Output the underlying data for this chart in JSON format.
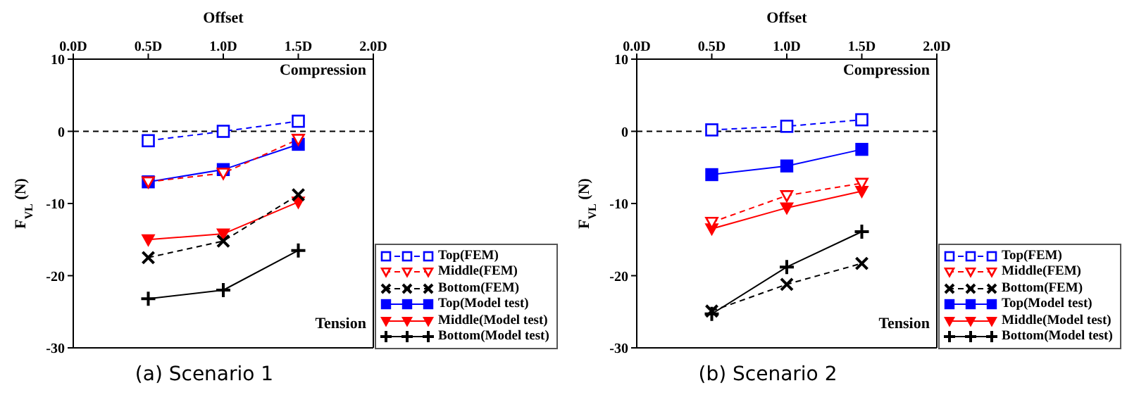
{
  "chart_data": [
    {
      "type": "line",
      "title": "(a) Scenario 1",
      "xlabel": "Offset",
      "ylabel": "F$_{VL}$ (N)",
      "x": [
        0.5,
        1.0,
        1.5
      ],
      "xlim": [
        0,
        2
      ],
      "xticks": [
        {
          "value": 0,
          "label": "0.0D"
        },
        {
          "value": 0.5,
          "label": "0.5D"
        },
        {
          "value": 1,
          "label": "1.0D"
        },
        {
          "value": 1.5,
          "label": "1.5D"
        },
        {
          "value": 2,
          "label": "2.0D"
        }
      ],
      "ylim": [
        -30,
        10
      ],
      "yticks": [
        -30,
        -20,
        -10,
        0,
        10
      ],
      "legend": "bottom right",
      "annotations": [
        "Compression",
        "Tension"
      ],
      "ref_lines": [
        {
          "axis": "y",
          "value": 0,
          "color": "#000000",
          "line_style": "dashed"
        }
      ],
      "series": [
        {
          "name": "Top(FEM)",
          "color": "#0000ff",
          "marker": "square",
          "line_style": "dashed",
          "values": [
            -1.3,
            0,
            1.4
          ]
        },
        {
          "name": "Middle(FEM)",
          "color": "#ff0000",
          "marker": "triangle",
          "line_style": "dashed",
          "values": [
            -7,
            -5.8,
            -1.1
          ]
        },
        {
          "name": "Bottom(FEM)",
          "color": "#000000",
          "marker": "cross",
          "line_style": "dashed",
          "values": [
            -17.5,
            -15.2,
            -8.8
          ]
        },
        {
          "name": "Top(Model test)",
          "color": "#0000ff",
          "marker": "square",
          "line_style": "solid",
          "values": [
            -7,
            -5.3,
            -1.8
          ]
        },
        {
          "name": "Middle(Model test)",
          "color": "#ff0000",
          "marker": "triangle",
          "line_style": "solid",
          "values": [
            -15,
            -14.2,
            -9.8
          ]
        },
        {
          "name": "Bottom(Model test)",
          "color": "#000000",
          "marker": "cross",
          "line_style": "solid",
          "values": [
            -23.2,
            -22,
            -16.5
          ]
        }
      ]
    },
    {
      "type": "line",
      "title": "(b) Scenario 2",
      "xlabel": "Offset",
      "ylabel": "F$_{VL}$ (N)",
      "x": [
        0.5,
        1.0,
        1.5
      ],
      "xlim": [
        0,
        2
      ],
      "xticks": [
        {
          "value": 0,
          "label": "0.0D"
        },
        {
          "value": 0.5,
          "label": "0.5D"
        },
        {
          "value": 1,
          "label": "1.0D"
        },
        {
          "value": 1.5,
          "label": "1.5D"
        },
        {
          "value": 2,
          "label": "2.0D"
        }
      ],
      "ylim": [
        -30,
        10
      ],
      "yticks": [
        -30,
        -20,
        -10,
        0,
        10
      ],
      "legend": "bottom right",
      "annotations": [
        "Compression",
        "Tension"
      ],
      "ref_lines": [
        {
          "axis": "y",
          "value": 0,
          "color": "#000000",
          "line_style": "dashed"
        }
      ],
      "series": [
        {
          "name": "Top(FEM)",
          "color": "#0000ff",
          "marker": "square",
          "line_style": "dashed",
          "values": [
            0.2,
            0.7,
            1.6
          ]
        },
        {
          "name": "Middle(FEM)",
          "color": "#ff0000",
          "marker": "triangle",
          "line_style": "dashed",
          "values": [
            -12.6,
            -8.9,
            -7.2
          ]
        },
        {
          "name": "Bottom(FEM)",
          "color": "#000000",
          "marker": "cross",
          "line_style": "dashed",
          "values": [
            -24.9,
            -21.2,
            -18.3
          ]
        },
        {
          "name": "Top(Model test)",
          "color": "#0000ff",
          "marker": "square",
          "line_style": "solid",
          "values": [
            -6,
            -4.8,
            -2.5
          ]
        },
        {
          "name": "Middle(Model test)",
          "color": "#ff0000",
          "marker": "triangle",
          "line_style": "solid",
          "values": [
            -13.5,
            -10.6,
            -8.3
          ]
        },
        {
          "name": "Bottom(Model test)",
          "color": "#000000",
          "marker": "cross",
          "line_style": "solid",
          "values": [
            -25.3,
            -18.8,
            -13.9
          ]
        }
      ]
    }
  ]
}
